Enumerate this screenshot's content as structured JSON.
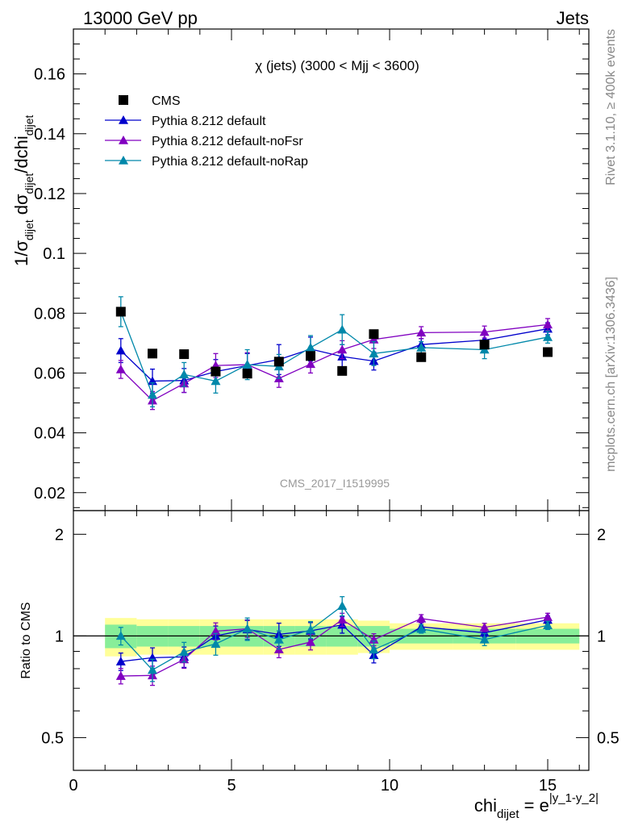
{
  "header": {
    "left": "13000 GeV pp",
    "right": "Jets"
  },
  "side_labels": {
    "rivet": "Rivet 3.1.10, ≥ 400k events",
    "mcplots": "mcplots.cern.ch [arXiv:1306.3436]"
  },
  "chart_data": {
    "type": "scatter",
    "title": "χ (jets) (3000 < Mjj < 3600)",
    "analysis_label": "CMS_2017_I1519995",
    "xlabel": {
      "base": "chi",
      "sub": "dijet",
      "eq": " = e",
      "sup": "|y_1-y_2|"
    },
    "ylabel": {
      "p1": "1/σ",
      "s1": "dijet",
      "p2": " dσ",
      "s2": "dijet",
      "p3": "/dchi",
      "s3": "dijet"
    },
    "ratio_ylabel": "Ratio to CMS",
    "xlim": [
      0,
      16.3
    ],
    "ylim": [
      0.014,
      0.175
    ],
    "ratio_ylim": [
      0.4,
      2.35
    ],
    "x_ticks": [
      0,
      5,
      10,
      15
    ],
    "y_ticks": [
      0.02,
      0.04,
      0.06,
      0.08,
      0.1,
      0.12,
      0.14,
      0.16
    ],
    "ratio_ticks": [
      0.5,
      1,
      2
    ],
    "y_tick_labels": [
      "0.02",
      "0.04",
      "0.06",
      "0.08",
      "0.1",
      "0.12",
      "0.14",
      "0.16"
    ],
    "ratio_tick_labels": [
      "0.5",
      "1",
      "2"
    ],
    "x_tick_labels": [
      "0",
      "5",
      "10",
      "15"
    ],
    "legend_position": "top-left",
    "x": [
      1.5,
      2.5,
      3.5,
      4.5,
      5.5,
      6.5,
      7.5,
      8.5,
      9.5,
      11,
      13,
      15
    ],
    "bin_edges": [
      1,
      2,
      3,
      4,
      5,
      6,
      7,
      8,
      9,
      10,
      12,
      14,
      16
    ],
    "ratio_band_inner": [
      0.08,
      0.07,
      0.07,
      0.07,
      0.07,
      0.07,
      0.07,
      0.07,
      0.07,
      0.05,
      0.05,
      0.05
    ],
    "ratio_band_outer": [
      0.13,
      0.12,
      0.12,
      0.12,
      0.12,
      0.12,
      0.12,
      0.12,
      0.11,
      0.09,
      0.09,
      0.09
    ],
    "series": [
      {
        "name": "CMS",
        "marker": "square",
        "color": "#000000",
        "values": [
          0.0805,
          0.0665,
          0.0663,
          0.0605,
          0.0598,
          0.0638,
          0.0657,
          0.0607,
          0.073,
          0.0653,
          0.0695,
          0.067
        ],
        "errors": [
          0,
          0,
          0,
          0,
          0,
          0,
          0,
          0,
          0,
          0,
          0,
          0
        ]
      },
      {
        "name": "Pythia 8.212 default",
        "marker": "triangle",
        "color": "#0000cc",
        "values": [
          0.0675,
          0.0573,
          0.0575,
          0.0605,
          0.0625,
          0.0645,
          0.068,
          0.0655,
          0.064,
          0.0695,
          0.071,
          0.0748
        ],
        "errors": [
          0.004,
          0.004,
          0.004,
          0.004,
          0.004,
          0.005,
          0.004,
          0.004,
          0.003,
          0.002,
          0.002,
          0.002
        ],
        "ratio": [
          0.84,
          0.862,
          0.867,
          1.0,
          1.045,
          1.011,
          1.035,
          1.079,
          0.877,
          1.064,
          1.022,
          1.116
        ],
        "ratio_errors": [
          0.05,
          0.06,
          0.06,
          0.07,
          0.07,
          0.08,
          0.06,
          0.06,
          0.045,
          0.03,
          0.03,
          0.03
        ]
      },
      {
        "name": "Pythia 8.212 default-noFsr",
        "marker": "triangle",
        "color": "#8000c0",
        "values": [
          0.0612,
          0.0508,
          0.0565,
          0.0625,
          0.0628,
          0.0582,
          0.063,
          0.0678,
          0.0712,
          0.0735,
          0.0737,
          0.0762
        ],
        "errors": [
          0.003,
          0.003,
          0.003,
          0.004,
          0.004,
          0.003,
          0.003,
          0.003,
          0.003,
          0.002,
          0.002,
          0.002
        ],
        "ratio": [
          0.761,
          0.764,
          0.852,
          1.033,
          1.05,
          0.912,
          0.959,
          1.117,
          0.975,
          1.126,
          1.06,
          1.137
        ],
        "ratio_errors": [
          0.04,
          0.05,
          0.05,
          0.06,
          0.06,
          0.05,
          0.05,
          0.05,
          0.04,
          0.03,
          0.03,
          0.03
        ]
      },
      {
        "name": "Pythia 8.212 default-noRap",
        "marker": "triangle",
        "color": "#0088aa",
        "values": [
          0.0805,
          0.0527,
          0.0595,
          0.0573,
          0.0628,
          0.0622,
          0.0685,
          0.0745,
          0.0665,
          0.0685,
          0.0678,
          0.072
        ],
        "errors": [
          0.005,
          0.004,
          0.004,
          0.004,
          0.005,
          0.004,
          0.004,
          0.005,
          0.004,
          0.002,
          0.003,
          0.002
        ],
        "ratio": [
          1.0,
          0.793,
          0.897,
          0.947,
          1.05,
          0.975,
          1.043,
          1.227,
          0.911,
          1.049,
          0.976,
          1.075
        ],
        "ratio_errors": [
          0.06,
          0.06,
          0.06,
          0.07,
          0.08,
          0.06,
          0.06,
          0.08,
          0.055,
          0.03,
          0.04,
          0.03
        ]
      }
    ]
  }
}
